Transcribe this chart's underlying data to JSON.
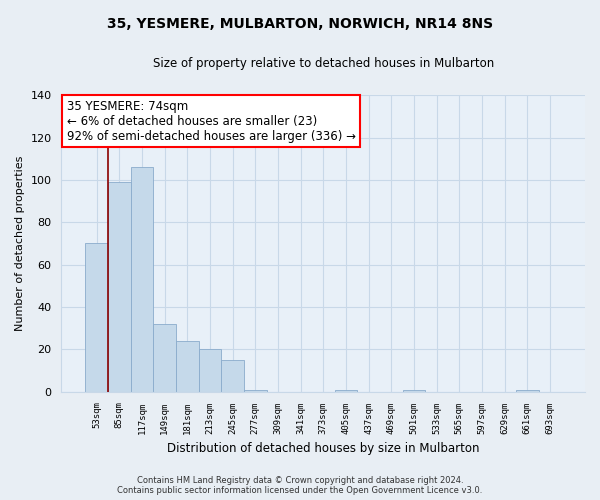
{
  "title": "35, YESMERE, MULBARTON, NORWICH, NR14 8NS",
  "subtitle": "Size of property relative to detached houses in Mulbarton",
  "xlabel": "Distribution of detached houses by size in Mulbarton",
  "ylabel": "Number of detached properties",
  "bar_labels": [
    "53sqm",
    "85sqm",
    "117sqm",
    "149sqm",
    "181sqm",
    "213sqm",
    "245sqm",
    "277sqm",
    "309sqm",
    "341sqm",
    "373sqm",
    "405sqm",
    "437sqm",
    "469sqm",
    "501sqm",
    "533sqm",
    "565sqm",
    "597sqm",
    "629sqm",
    "661sqm",
    "693sqm"
  ],
  "bar_values": [
    70,
    99,
    106,
    32,
    24,
    20,
    15,
    1,
    0,
    0,
    0,
    1,
    0,
    0,
    1,
    0,
    0,
    0,
    0,
    1,
    0
  ],
  "bar_color": "#c5d9ea",
  "ylim": [
    0,
    140
  ],
  "yticks": [
    0,
    20,
    40,
    60,
    80,
    100,
    120,
    140
  ],
  "red_line_x": 0.5,
  "annotation_box_text": "35 YESMERE: 74sqm\n← 6% of detached houses are smaller (23)\n92% of semi-detached houses are larger (336) →",
  "footer_line1": "Contains HM Land Registry data © Crown copyright and database right 2024.",
  "footer_line2": "Contains public sector information licensed under the Open Government Licence v3.0.",
  "bg_color": "#e8eef4",
  "plot_bg_color": "#e8f0f8",
  "grid_color": "#c8d8e8"
}
